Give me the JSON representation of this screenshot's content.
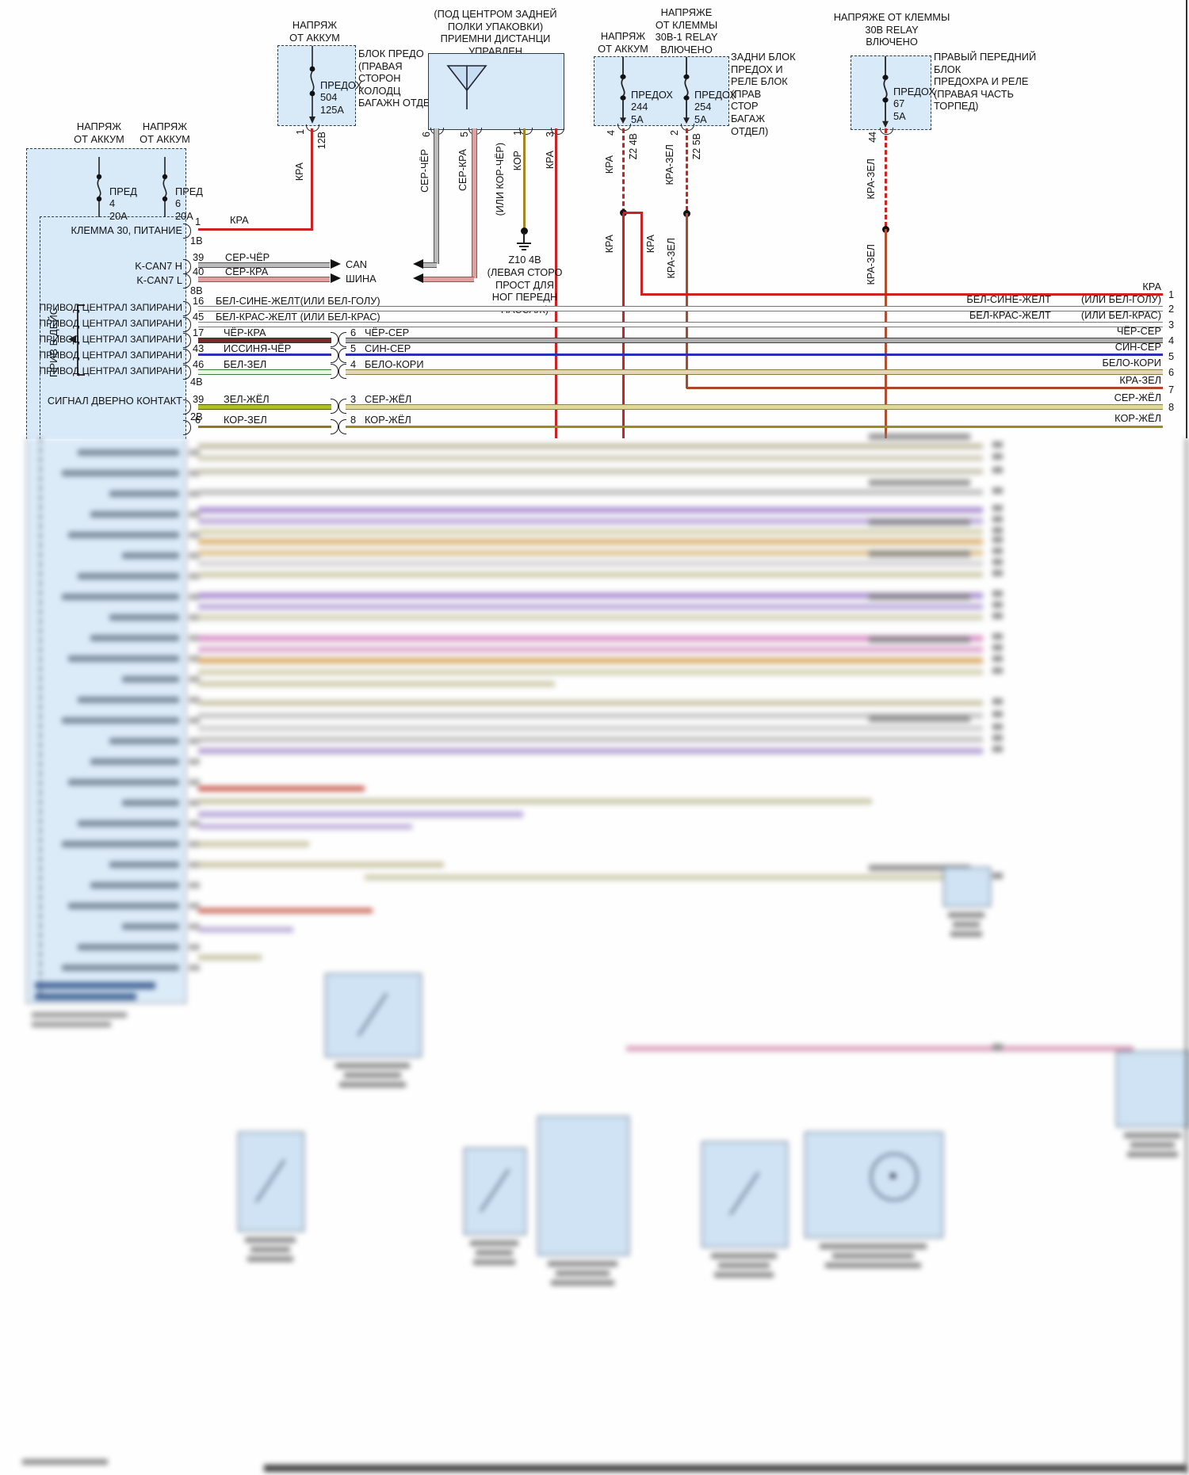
{
  "module": {
    "supply_left": "НАПРЯЖ\nОТ АККУМ",
    "supply_right": "НАПРЯЖ\nОТ АККУМ",
    "fuse_a": {
      "name": "ПРЕД",
      "num": "4",
      "amps": "20А"
    },
    "fuse_b": {
      "name": "ПРЕД",
      "num": "6",
      "amps": "20А"
    },
    "group_label": "ПРИВ В ДЕЙС",
    "lock_label": "ПРИВОД ЦЕНТРАЛ ЗАПИРАНИ"
  },
  "rows": {
    "klemma": {
      "label": "КЛЕММА 30, ПИТАНИЕ",
      "pin": "1",
      "wire": "КРА",
      "conn": "1В"
    },
    "canh": {
      "label": "K-CAN7 H",
      "pin": "39",
      "wire": "СЕР-ЧЁР",
      "bus": "CAN"
    },
    "canl": {
      "label": "K-CAN7 L",
      "pin": "40",
      "wire": "СЕР-КРА",
      "bus": "ШИНА",
      "conn": "8В"
    },
    "r16": {
      "pin": "16",
      "wire": "БЕЛ-СИНЕ-ЖЕЛТ(ИЛИ БЕЛ-ГОЛУ)",
      "right": "БЕЛ-СИНЕ-ЖЕЛТ",
      "right_alt": "(ИЛИ БЕЛ-ГОЛУ)",
      "num": "2"
    },
    "r45": {
      "pin": "45",
      "wire": "БЕЛ-КРАС-ЖЕЛТ (ИЛИ БЕЛ-КРАС)",
      "right": "БЕЛ-КРАС-ЖЕЛТ",
      "right_alt": "(ИЛИ БЕЛ-КРАС)",
      "num": "3"
    },
    "r17": {
      "pin": "17",
      "wire": "ЧЁР-КРА",
      "mid_pin": "6",
      "mid_wire": "ЧЁР-СЕР",
      "right": "ЧЁР-СЕР",
      "num": "4"
    },
    "r43": {
      "pin": "43",
      "wire": "ИССИНЯ-ЧЁР",
      "mid_pin": "5",
      "mid_wire": "СИН-СЕР",
      "right": "СИН-СЕР",
      "num": "5"
    },
    "r46": {
      "pin": "46",
      "wire": "БЕЛ-ЗЕЛ",
      "mid_pin": "4",
      "mid_wire": "БЕЛО-КОРИ",
      "right": "БЕЛО-КОРИ",
      "num": "6",
      "conn": "4В"
    },
    "krazel": {
      "right": "КРА-ЗЕЛ",
      "num": "7"
    },
    "door": {
      "label": "СИГНАЛ ДВЕРНО КОНТАКТ",
      "pin": "39",
      "wire": "ЗЕЛ-ЖЁЛ",
      "mid_pin": "3",
      "mid_wire": "СЕР-ЖЁЛ",
      "right": "СЕР-ЖЁЛ",
      "num": "8",
      "conn": "2В"
    },
    "kor": {
      "pin": "6",
      "wire": "КОР-ЗЕЛ",
      "mid_pin": "8",
      "mid_wire": "КОР-ЖЁЛ",
      "right": "КОР-ЖЁЛ"
    },
    "bus_kra": {
      "right": "КРА",
      "num": "1"
    }
  },
  "fuse504": {
    "supply": "НАПРЯЖ\nОТ АККУМ",
    "name": "ПРЕДОХ",
    "num": "504",
    "amps": "125А",
    "loc": "БЛОК ПРЕДО\n(ПРАВАЯ\nСТОРОН\nКОЛОДЦ\nБАГАЖН ОТДЕЛЕ)",
    "pin": "1",
    "volt": "12В",
    "wire_v": "КРА"
  },
  "antenna": {
    "title": "(ПОД ЦЕНТРОМ ЗАДНЕЙ\nПОЛКИ УПАКОВКИ)\nПРИЕМНИ ДИСТАНЦИ\nУПРАВЛЕН",
    "p6": {
      "num": "6",
      "wire": "СЕР-ЧЁР"
    },
    "p5": {
      "num": "5",
      "wire": "СЕР-КРА"
    },
    "p1": {
      "num": "1",
      "wire": "КОР",
      "alt": "(ИЛИ КОР-ЧЁР)"
    },
    "p3": {
      "num": "3",
      "wire": "КРА"
    }
  },
  "ground": {
    "id": "Z10 4В",
    "loc": "(ЛЕВАЯ СТОРО\nПРОСТ ДЛЯ\nНОГ ПЕРЕДН\nПАССАЖ)"
  },
  "rearbox": {
    "supply244": "НАПРЯЖ\nОТ АККУМ",
    "supply254": "НАПРЯЖЕ\nОТ КЛЕММЫ\n30В-1 RELAY\nВЛЮЧЕНО",
    "f244": {
      "name": "ПРЕДОХ",
      "num": "244",
      "amps": "5А",
      "pin": "4",
      "conn": "Z2 4В",
      "wire": "КРА",
      "wire2": "КРА",
      "wire3": "КРА"
    },
    "f254": {
      "name": "ПРЕДОХ",
      "num": "254",
      "amps": "5А",
      "pin": "2",
      "conn": "Z2 5В",
      "wire": "КРА-ЗЕЛ",
      "wire2": "КРА-ЗЕЛ"
    },
    "loc": "ЗАДНИ БЛОК\nПРЕДОХ И\nРЕЛЕ БЛОК\n(ПРАВ\nСТОР\nБАГАЖ\nОТДЕЛ)"
  },
  "fuse67": {
    "supply": "НАПРЯЖЕ ОТ КЛЕММЫ\n30В RELAY\nВЛЮЧЕНО",
    "name": "ПРЕДОХ",
    "num": "67",
    "amps": "5А",
    "pin": "44",
    "wire": "КРА-ЗЕЛ",
    "wire2": "КРА-ЗЕЛ",
    "loc": "ПРАВЫЙ ПЕРЕДНИЙ БЛОК\nПРЕДОХРА И РЕЛЕ\n(ПРАВАЯ ЧАСТЬ ТОРПЕД)"
  },
  "colors": {
    "box_fill": "#d8e9f8",
    "wire_red": "#cc2222",
    "wire_pink": "#e0a0a0",
    "wire_olive": "#a08820",
    "wire_blue": "#2830b8",
    "wire_green_yellow": "#aec01c"
  }
}
